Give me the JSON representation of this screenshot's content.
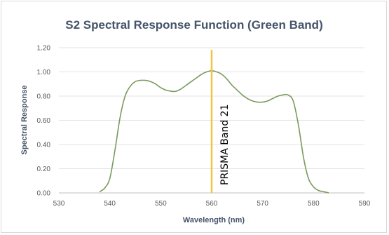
{
  "chart_data": {
    "type": "line",
    "title": "S2 Spectral Response Function (Green Band)",
    "xlabel": "Wavelength (nm)",
    "ylabel": "Spectral Response",
    "xlim": [
      530,
      590
    ],
    "ylim": [
      0,
      1.2
    ],
    "x_ticks": [
      "530",
      "540",
      "550",
      "560",
      "570",
      "580",
      "590"
    ],
    "y_ticks": [
      "0.00",
      "0.20",
      "0.40",
      "0.60",
      "0.80",
      "1.00",
      "1.20"
    ],
    "grid": true,
    "legend": false,
    "series": [
      {
        "color": "#7a9a5e",
        "x": [
          538,
          539,
          540,
          541,
          542,
          543,
          544,
          545,
          546,
          547,
          548,
          549,
          550,
          551,
          552,
          553,
          554,
          555,
          556,
          557,
          558,
          559,
          560,
          561,
          562,
          563,
          564,
          565,
          566,
          567,
          568,
          569,
          570,
          571,
          572,
          573,
          574,
          575,
          576,
          577,
          578,
          579,
          580,
          581,
          582,
          583
        ],
        "y": [
          0.01,
          0.04,
          0.12,
          0.35,
          0.62,
          0.8,
          0.88,
          0.92,
          0.93,
          0.93,
          0.92,
          0.9,
          0.87,
          0.85,
          0.84,
          0.84,
          0.86,
          0.89,
          0.92,
          0.95,
          0.98,
          1.0,
          1.01,
          1.0,
          0.98,
          0.94,
          0.89,
          0.85,
          0.81,
          0.78,
          0.76,
          0.75,
          0.75,
          0.76,
          0.78,
          0.8,
          0.81,
          0.81,
          0.76,
          0.57,
          0.3,
          0.12,
          0.05,
          0.02,
          0.01,
          0.0
        ]
      }
    ],
    "annotation": {
      "text": "PRISMA Band 21",
      "x": 560,
      "color": "#f5c343"
    }
  }
}
